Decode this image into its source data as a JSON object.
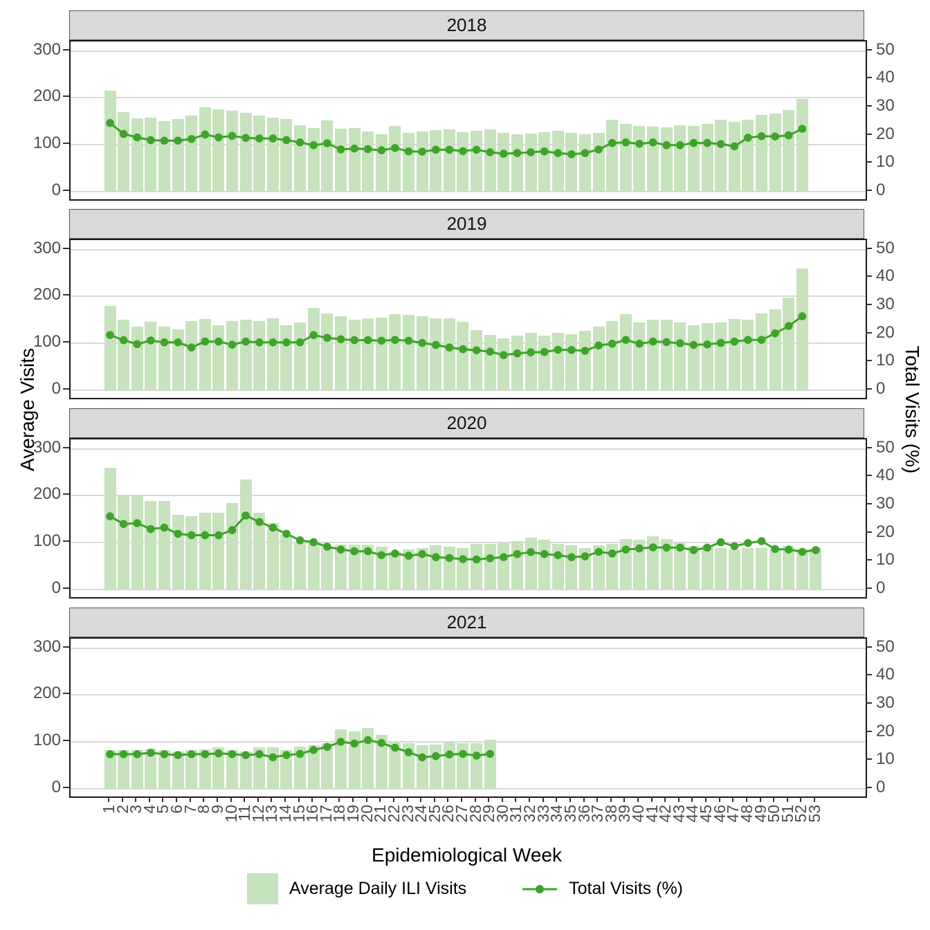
{
  "axes": {
    "left_title": "Average Visits",
    "right_title": "Total Visits (%)",
    "x_title": "Epidemiological Week",
    "left_ticks": [
      0,
      100,
      200,
      300
    ],
    "right_ticks": [
      0,
      10,
      20,
      30,
      40,
      50
    ],
    "x_ticks": [
      "1",
      "2",
      "3",
      "4",
      "5",
      "6",
      "7",
      "8",
      "9",
      "10",
      "11",
      "12",
      "13",
      "14",
      "15",
      "16",
      "17",
      "18",
      "19",
      "20",
      "21",
      "22",
      "23",
      "24",
      "25",
      "26",
      "27",
      "28",
      "29",
      "30",
      "31",
      "32",
      "33",
      "34",
      "35",
      "36",
      "37",
      "38",
      "39",
      "40",
      "41",
      "42",
      "43",
      "44",
      "45",
      "46",
      "47",
      "48",
      "49",
      "50",
      "51",
      "52",
      "53"
    ]
  },
  "legend": {
    "items": [
      {
        "label": "Average Daily ILI Visits",
        "swatch": "bar-swatch"
      },
      {
        "label": "Total Visits (%)",
        "swatch": "line-swatch"
      }
    ]
  },
  "colors": {
    "bar_fill": "#c7e3bd",
    "line": "#3fa32c",
    "strip_bg": "#d9d9d9",
    "gridline": "#d9d9d9",
    "tick_text": "#4d4d4d",
    "panel_border": "#1a1a1a"
  },
  "chart_data": {
    "type": "bar",
    "subtype": "bar+line faceted by year",
    "xlabel": "Epidemiological Week",
    "ylabel_left": "Average Visits",
    "ylabel_right": "Total Visits (%)",
    "ylim_left": [
      0,
      300
    ],
    "ylim_right": [
      0,
      50
    ],
    "grid": "horizontal-major-only",
    "legend_position": "bottom",
    "facets": [
      "2018",
      "2019",
      "2020",
      "2021"
    ],
    "series_labels": {
      "bars": "Average Daily ILI Visits",
      "line": "Total Visits (%)"
    },
    "panels": [
      {
        "year": "2018",
        "first_week": 1,
        "avg_daily_ili_visits": [
          215,
          170,
          157,
          158,
          150,
          155,
          162,
          180,
          175,
          173,
          168,
          162,
          158,
          155,
          141,
          136,
          152,
          134,
          136,
          128,
          123,
          140,
          126,
          128,
          131,
          132,
          127,
          130,
          133,
          125,
          122,
          124,
          127,
          130,
          125,
          122,
          125,
          153,
          145,
          140,
          138,
          137,
          142,
          140,
          145,
          153,
          149,
          153,
          164,
          167,
          174,
          198
        ],
        "total_visits_pct": [
          24.4,
          20.5,
          19.3,
          18.3,
          18.1,
          18.1,
          18.7,
          20.3,
          19.3,
          19.8,
          19.1,
          18.9,
          18.9,
          18.3,
          17.5,
          16.5,
          17.2,
          15.0,
          15.3,
          15.1,
          14.7,
          15.5,
          14.3,
          14.2,
          14.9,
          14.9,
          14.4,
          14.9,
          14.0,
          13.5,
          13.7,
          14.0,
          14.3,
          13.7,
          13.3,
          13.7,
          15.0,
          17.3,
          17.5,
          17.0,
          17.5,
          16.5,
          16.5,
          17.3,
          17.3,
          16.9,
          16.1,
          19.2,
          19.7,
          19.6,
          20.0,
          22.3
        ]
      },
      {
        "year": "2019",
        "first_week": 1,
        "avg_daily_ili_visits": [
          180,
          151,
          135,
          146,
          135,
          129,
          147,
          152,
          138,
          148,
          151,
          147,
          154,
          138,
          145,
          176,
          163,
          158,
          150,
          153,
          155,
          162,
          160,
          158,
          153,
          153,
          146,
          128,
          118,
          111,
          116,
          123,
          117,
          123,
          120,
          127,
          135,
          147,
          162,
          144,
          150,
          151,
          144,
          139,
          143,
          144,
          152,
          151,
          164,
          173,
          197,
          260
        ],
        "total_visits_pct": [
          19.6,
          17.8,
          16.4,
          17.7,
          17.0,
          17.0,
          15.2,
          17.3,
          17.3,
          16.2,
          17.3,
          17.0,
          17.0,
          17.0,
          17.0,
          19.6,
          18.6,
          18.1,
          17.8,
          17.8,
          17.6,
          17.9,
          17.6,
          16.8,
          16.1,
          15.2,
          14.6,
          14.2,
          13.7,
          12.5,
          13.1,
          13.5,
          13.6,
          14.4,
          14.3,
          14.0,
          15.9,
          16.5,
          17.9,
          16.5,
          17.3,
          17.1,
          16.7,
          16.1,
          16.3,
          16.8,
          17.3,
          17.9,
          17.9,
          20.2,
          22.8,
          26.3
        ]
      },
      {
        "year": "2020",
        "first_week": 1,
        "avg_daily_ili_visits": [
          260,
          202,
          200,
          189,
          188,
          159,
          157,
          164,
          164,
          184,
          234,
          163,
          142,
          117,
          100,
          103,
          91,
          96,
          96,
          96,
          91,
          81,
          85,
          88,
          94,
          91,
          88,
          98,
          98,
          99,
          103,
          111,
          106,
          98,
          95,
          88,
          95,
          98,
          108,
          106,
          113,
          108,
          100,
          93,
          95,
          88,
          85,
          88,
          88,
          85,
          93,
          85,
          88
        ],
        "total_visits_pct": [
          26.0,
          23.3,
          23.6,
          21.5,
          22.0,
          19.8,
          19.3,
          19.3,
          19.3,
          21.1,
          26.3,
          24.0,
          22.0,
          19.8,
          17.5,
          16.8,
          15.2,
          14.2,
          13.6,
          13.6,
          12.2,
          12.8,
          12.0,
          12.6,
          11.5,
          11.2,
          10.8,
          10.7,
          11.1,
          11.5,
          12.6,
          13.3,
          12.6,
          12.2,
          11.5,
          11.8,
          13.4,
          12.8,
          14.2,
          14.6,
          15.0,
          14.9,
          14.9,
          14.0,
          14.9,
          16.8,
          15.4,
          16.5,
          17.2,
          14.4,
          14.2,
          13.4,
          14.0
        ]
      },
      {
        "year": "2021",
        "first_week": 1,
        "avg_daily_ili_visits": [
          82,
          83,
          83,
          85,
          83,
          79,
          83,
          84,
          88,
          83,
          79,
          88,
          88,
          83,
          90,
          93,
          97,
          127,
          122,
          129,
          115,
          102,
          98,
          93,
          95,
          99,
          98,
          97,
          104
        ],
        "total_visits_pct": [
          12.3,
          12.3,
          12.3,
          12.8,
          12.3,
          12.0,
          12.3,
          12.3,
          12.6,
          12.3,
          12.0,
          12.3,
          11.2,
          12.0,
          12.4,
          13.8,
          14.9,
          16.7,
          16.1,
          17.3,
          16.3,
          14.6,
          13.0,
          11.2,
          11.6,
          12.2,
          12.4,
          11.8,
          12.4
        ]
      }
    ]
  }
}
